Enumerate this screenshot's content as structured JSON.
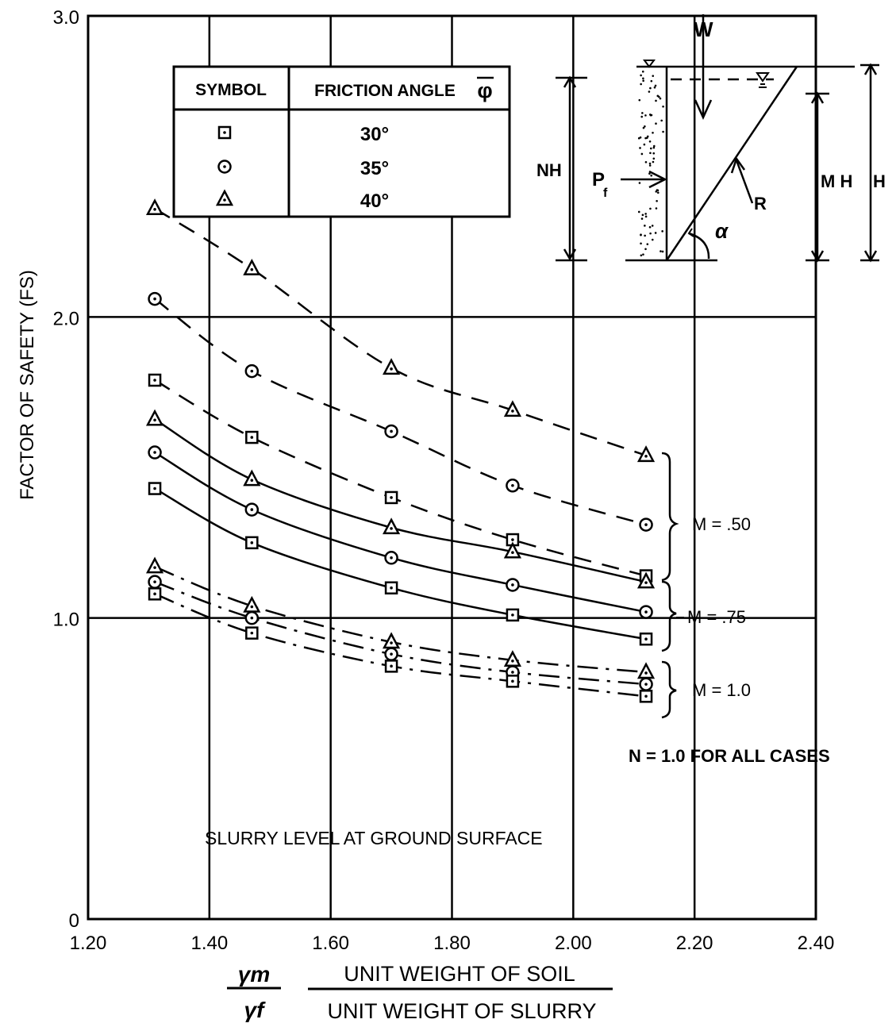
{
  "chart_data": {
    "type": "line",
    "ylabel": "FACTOR OF SAFETY (FS)",
    "xlabel_ratio_top": "γm",
    "xlabel_ratio_bottom": "γf",
    "xlabel_top": "UNIT WEIGHT OF SOIL",
    "xlabel_bottom": "UNIT WEIGHT OF SLURRY",
    "xlim": [
      1.2,
      2.4
    ],
    "ylim": [
      0,
      3.0
    ],
    "x_ticks": [
      "1.20",
      "1.40",
      "1.60",
      "1.80",
      "2.00",
      "2.20",
      "2.40"
    ],
    "y_ticks": [
      {
        "value": 0,
        "label": "0"
      },
      {
        "value": 1.0,
        "label": "1.0"
      },
      {
        "value": 2.0,
        "label": "2.0"
      },
      {
        "value": 3.0,
        "label": "3.0"
      }
    ],
    "grid": true,
    "legend": {
      "header_symbol": "SYMBOL",
      "header_angle": "FRICTION ANGLE",
      "header_phi": "φ",
      "position": "top-left",
      "entries": [
        {
          "symbol": "square",
          "label": "30°"
        },
        {
          "symbol": "circle",
          "label": "35°"
        },
        {
          "symbol": "triangle",
          "label": "40°"
        }
      ]
    },
    "x": [
      1.31,
      1.47,
      1.7,
      1.9,
      2.12
    ],
    "series": [
      {
        "symbol": "triangle",
        "m_group": "M = .50",
        "style": "dashed",
        "values": [
          2.36,
          2.16,
          1.83,
          1.69,
          1.54
        ]
      },
      {
        "symbol": "circle",
        "m_group": "M = .50",
        "style": "dashed",
        "values": [
          2.06,
          1.82,
          1.62,
          1.44,
          1.31
        ]
      },
      {
        "symbol": "square",
        "m_group": "M = .50",
        "style": "dashed",
        "values": [
          1.79,
          1.6,
          1.4,
          1.26,
          1.14
        ]
      },
      {
        "symbol": "triangle",
        "m_group": "M = .75",
        "style": "solid",
        "values": [
          1.66,
          1.46,
          1.3,
          1.22,
          1.12
        ]
      },
      {
        "symbol": "circle",
        "m_group": "M = .75",
        "style": "solid",
        "values": [
          1.55,
          1.36,
          1.2,
          1.11,
          1.02
        ]
      },
      {
        "symbol": "square",
        "m_group": "M = .75",
        "style": "solid",
        "values": [
          1.43,
          1.25,
          1.1,
          1.01,
          0.93
        ]
      },
      {
        "symbol": "triangle",
        "m_group": "M = 1.0",
        "style": "dashdot",
        "values": [
          1.17,
          1.04,
          0.92,
          0.86,
          0.82
        ]
      },
      {
        "symbol": "circle",
        "m_group": "M = 1.0",
        "style": "dashdot",
        "values": [
          1.12,
          1.0,
          0.88,
          0.82,
          0.78
        ]
      },
      {
        "symbol": "square",
        "m_group": "M = 1.0",
        "style": "dashdot",
        "values": [
          1.08,
          0.95,
          0.84,
          0.79,
          0.74
        ]
      }
    ],
    "annotations": {
      "m50": "M = .50",
      "m75": "M = .75",
      "m10": "M = 1.0",
      "n_note": "N = 1.0  FOR ALL CASES",
      "slurry_note": "SLURRY LEVEL AT GROUND SURFACE"
    },
    "diagram_labels": {
      "w": "W",
      "nh": "NH",
      "pf": "P",
      "pf_sub": "f",
      "r": "R",
      "alpha": "α",
      "mh": "M H",
      "h": "H"
    }
  }
}
